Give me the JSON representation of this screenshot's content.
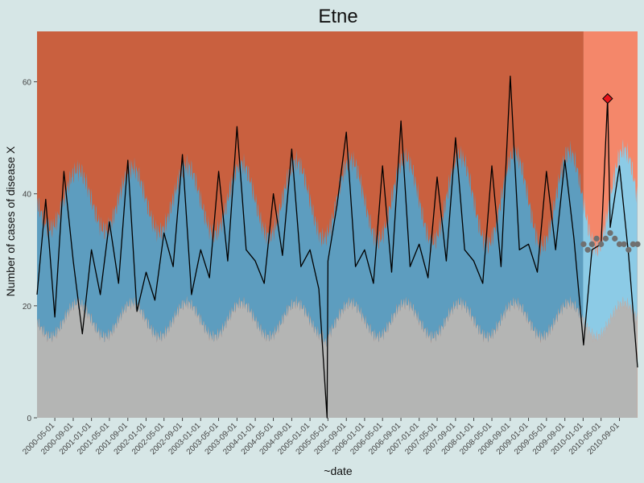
{
  "chart_data": {
    "type": "line",
    "title": "Etne",
    "xlabel": "~date",
    "ylabel": "Number of cases of disease X",
    "ylim": [
      0,
      69
    ],
    "y_ticks": [
      0,
      20,
      40,
      60
    ],
    "x_ticks": [
      "2000-05-01",
      "2000-09-01",
      "2001-01-01",
      "2001-05-01",
      "2001-09-01",
      "2002-01-01",
      "2002-05-01",
      "2002-09-01",
      "2003-01-01",
      "2003-05-01",
      "2003-09-01",
      "2004-01-01",
      "2004-05-01",
      "2004-09-01",
      "2005-01-01",
      "2005-05-01",
      "2005-09-01",
      "2006-01-01",
      "2006-05-01",
      "2006-09-01",
      "2007-01-01",
      "2007-05-01",
      "2007-09-01",
      "2008-01-01",
      "2008-05-01",
      "2008-09-01",
      "2009-01-01",
      "2009-05-01",
      "2009-09-01",
      "2010-01-01",
      "2010-05-01",
      "2010-09-01"
    ],
    "x_range": [
      "2000-01-03",
      "2010-12-31"
    ],
    "training_period": [
      "2000-01-03",
      "2010-01-04"
    ],
    "prediction_period": [
      "2010-01-04",
      "2010-12-31"
    ],
    "grid": false,
    "legend": "none",
    "colors": {
      "background": "#d6e6e6",
      "high_zone": "#c9603f",
      "high_zone_prediction": "#f4876a",
      "normal_band": "#5d9dbf",
      "normal_band_prediction": "#8ccbe6",
      "low_zone": "#b4b5b4",
      "observed_line": "#000000",
      "predicted_points": "#707070",
      "alert_marker": "#e8141b"
    },
    "band": {
      "lower_base": 17.5,
      "lower_amplitude": 3,
      "upper_base": 39,
      "upper_amplitude_start": 5,
      "upper_amplitude_end": 9,
      "seasonal_peak_month": 9
    },
    "series": [
      {
        "dates": [
          "2000-01-03",
          "2000-03-01",
          "2000-05-01",
          "2000-07-01",
          "2000-09-01",
          "2000-11-01",
          "2001-01-01",
          "2001-03-01",
          "2001-05-01",
          "2001-07-01",
          "2001-09-01",
          "2001-11-01",
          "2002-01-01",
          "2002-03-01",
          "2002-05-01",
          "2002-07-01",
          "2002-09-01",
          "2002-11-01",
          "2003-01-01",
          "2003-03-01",
          "2003-05-01",
          "2003-07-01",
          "2003-09-01",
          "2003-11-01",
          "2004-01-01",
          "2004-03-01",
          "2004-05-01",
          "2004-07-01",
          "2004-09-01",
          "2004-11-01",
          "2005-01-01",
          "2005-03-01",
          "2005-04-25",
          "2005-05-01",
          "2005-07-01",
          "2005-09-01",
          "2005-11-01",
          "2006-01-01",
          "2006-03-01",
          "2006-05-01",
          "2006-07-01",
          "2006-09-01",
          "2006-11-01",
          "2007-01-01",
          "2007-03-01",
          "2007-05-01",
          "2007-07-01",
          "2007-09-01",
          "2007-11-01",
          "2008-01-01",
          "2008-03-01",
          "2008-05-01",
          "2008-07-01",
          "2008-09-01",
          "2008-11-01",
          "2009-01-01",
          "2009-03-01",
          "2009-05-01",
          "2009-07-01",
          "2009-09-01",
          "2009-11-01",
          "2010-01-04",
          "2010-03-01",
          "2010-05-01",
          "2010-06-14",
          "2010-07-01",
          "2010-09-01",
          "2010-11-01",
          "2010-12-31"
        ],
        "values": [
          22,
          39,
          18,
          44,
          28,
          15,
          30,
          22,
          35,
          24,
          46,
          19,
          26,
          21,
          33,
          27,
          47,
          22,
          30,
          25,
          44,
          28,
          52,
          30,
          28,
          24,
          40,
          29,
          48,
          27,
          30,
          23,
          0,
          28,
          38,
          51,
          27,
          30,
          24,
          45,
          26,
          53,
          27,
          31,
          25,
          43,
          28,
          50,
          30,
          28,
          24,
          45,
          27,
          61,
          30,
          31,
          26,
          44,
          30,
          46,
          32,
          13,
          30,
          31,
          57,
          34,
          45,
          29,
          9
        ]
      }
    ],
    "predicted": {
      "dates": [
        "2010-01-04",
        "2010-02-01",
        "2010-03-01",
        "2010-04-01",
        "2010-05-01",
        "2010-06-01",
        "2010-07-01",
        "2010-08-01",
        "2010-09-01",
        "2010-10-01",
        "2010-11-01",
        "2010-12-01",
        "2010-12-31"
      ],
      "values": [
        31,
        30,
        31,
        32,
        31,
        32,
        33,
        32,
        31,
        31,
        30,
        31,
        31
      ]
    },
    "alerts": [
      {
        "date": "2010-06-14",
        "value": 57
      }
    ]
  }
}
